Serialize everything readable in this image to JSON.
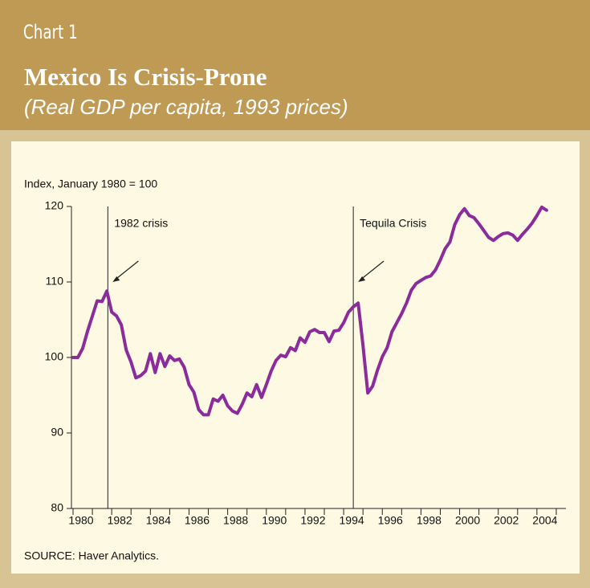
{
  "chart_data": {
    "type": "line",
    "label": "Chart 1",
    "title": "Mexico Is Crisis-Prone",
    "subtitle": "(Real GDP per capita, 1993 prices)",
    "ylabel": "Index, January 1980 = 100",
    "source": "SOURCE: Haver Analytics.",
    "xlim": [
      1980,
      2005.5
    ],
    "xticks": [
      1980,
      1982,
      1984,
      1986,
      1988,
      1990,
      1992,
      1994,
      1996,
      1998,
      2000,
      2002,
      2004
    ],
    "xticks_minor": [
      1981,
      1983,
      1985,
      1987,
      1989,
      1991,
      1993,
      1995,
      1997,
      1999,
      2001,
      2003,
      2005
    ],
    "ylim": [
      80,
      120
    ],
    "yticks": [
      80,
      90,
      100,
      110,
      120
    ],
    "events": [
      {
        "label": "1982 crisis",
        "x": 1981.8
      },
      {
        "label": "Tequila Crisis",
        "x": 1994.5
      }
    ],
    "x": [
      1980,
      1980.25,
      1980.5,
      1980.75,
      1981,
      1981.25,
      1981.5,
      1981.75,
      1982,
      1982.25,
      1982.5,
      1982.75,
      1983,
      1983.25,
      1983.5,
      1983.75,
      1984,
      1984.25,
      1984.5,
      1984.75,
      1985,
      1985.25,
      1985.5,
      1985.75,
      1986,
      1986.25,
      1986.5,
      1986.75,
      1987,
      1987.25,
      1987.5,
      1987.75,
      1988,
      1988.25,
      1988.5,
      1988.75,
      1989,
      1989.25,
      1989.5,
      1989.75,
      1990,
      1990.25,
      1990.5,
      1990.75,
      1991,
      1991.25,
      1991.5,
      1991.75,
      1992,
      1992.25,
      1992.5,
      1992.75,
      1993,
      1993.25,
      1993.5,
      1993.75,
      1994,
      1994.25,
      1994.5,
      1994.75,
      1995,
      1995.25,
      1995.5,
      1995.75,
      1996,
      1996.25,
      1996.5,
      1996.75,
      1997,
      1997.25,
      1997.5,
      1997.75,
      1998,
      1998.25,
      1998.5,
      1998.75,
      1999,
      1999.25,
      1999.5,
      1999.75,
      2000,
      2000.25,
      2000.5,
      2000.75,
      2001,
      2001.25,
      2001.5,
      2001.75,
      2002,
      2002.25,
      2002.5,
      2002.75,
      2003,
      2003.25,
      2003.5,
      2003.75,
      2004,
      2004.25,
      2004.5
    ],
    "series": [
      {
        "name": "Real GDP per capita",
        "color": "#8a2c9b",
        "values": [
          100,
          100,
          101.2,
          103.5,
          105.5,
          107.5,
          107.4,
          108.8,
          106,
          105.5,
          104.3,
          101,
          99.4,
          97.3,
          97.6,
          98.2,
          100.5,
          98,
          100.5,
          98.8,
          100.2,
          99.6,
          99.8,
          98.7,
          96.4,
          95.4,
          93.1,
          92.4,
          92.4,
          94.5,
          94.2,
          95,
          93.6,
          92.9,
          92.6,
          93.8,
          95.3,
          94.8,
          96.4,
          94.7,
          96.4,
          98.2,
          99.6,
          100.3,
          100.1,
          101.3,
          100.9,
          102.6,
          102,
          103.4,
          103.7,
          103.3,
          103.3,
          102.1,
          103.5,
          103.6,
          104.6,
          106,
          106.7,
          107.2,
          101.6,
          95.3,
          96.2,
          98.3,
          100.1,
          101.3,
          103.4,
          104.6,
          105.8,
          107.2,
          108.9,
          109.8,
          110.2,
          110.6,
          110.8,
          111.6,
          112.9,
          114.4,
          115.3,
          117.6,
          118.9,
          119.7,
          118.8,
          118.5,
          117.7,
          116.8,
          115.9,
          115.5,
          116,
          116.4,
          116.5,
          116.2,
          115.5,
          116.3,
          117,
          117.8,
          118.8,
          119.9,
          119.5
        ]
      }
    ]
  }
}
